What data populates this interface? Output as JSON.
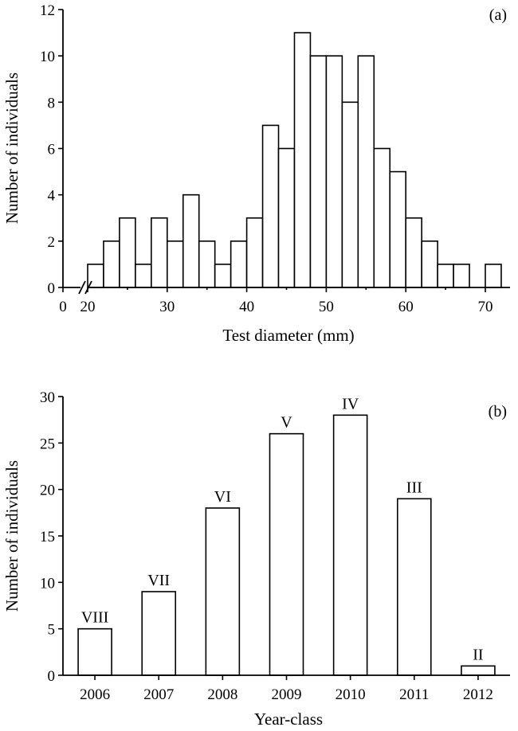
{
  "chart_data": [
    {
      "type": "bar",
      "panel_label": "(a)",
      "xlabel": "Test diameter (mm)",
      "ylabel": "Number of individuals",
      "xlim": [
        0,
        72
      ],
      "ylim": [
        0,
        12
      ],
      "xticks": [
        "0",
        "20",
        "30",
        "40",
        "50",
        "60",
        "70"
      ],
      "yticks": [
        "0",
        "2",
        "4",
        "6",
        "8",
        "10",
        "12"
      ],
      "axis_break": "between 0 and 20",
      "bin_width": 2,
      "x": [
        20,
        22,
        24,
        26,
        28,
        30,
        32,
        34,
        36,
        38,
        40,
        42,
        44,
        46,
        48,
        50,
        52,
        54,
        56,
        58,
        60,
        62,
        64,
        66,
        68,
        70
      ],
      "values": [
        1,
        2,
        3,
        1,
        3,
        2,
        4,
        2,
        1,
        2,
        3,
        7,
        6,
        11,
        10,
        10,
        8,
        10,
        6,
        5,
        3,
        2,
        1,
        1,
        0,
        1
      ]
    },
    {
      "type": "bar",
      "panel_label": "(b)",
      "xlabel": "Year-class",
      "ylabel": "Number of individuals",
      "ylim": [
        0,
        30
      ],
      "yticks": [
        "0",
        "5",
        "10",
        "15",
        "20",
        "25",
        "30"
      ],
      "categories": [
        "2006",
        "2007",
        "2008",
        "2009",
        "2010",
        "2011",
        "2012"
      ],
      "values": [
        5,
        9,
        18,
        26,
        28,
        19,
        1
      ],
      "bar_labels": [
        "VIII",
        "VII",
        "VI",
        "V",
        "IV",
        "III",
        "II"
      ]
    }
  ]
}
